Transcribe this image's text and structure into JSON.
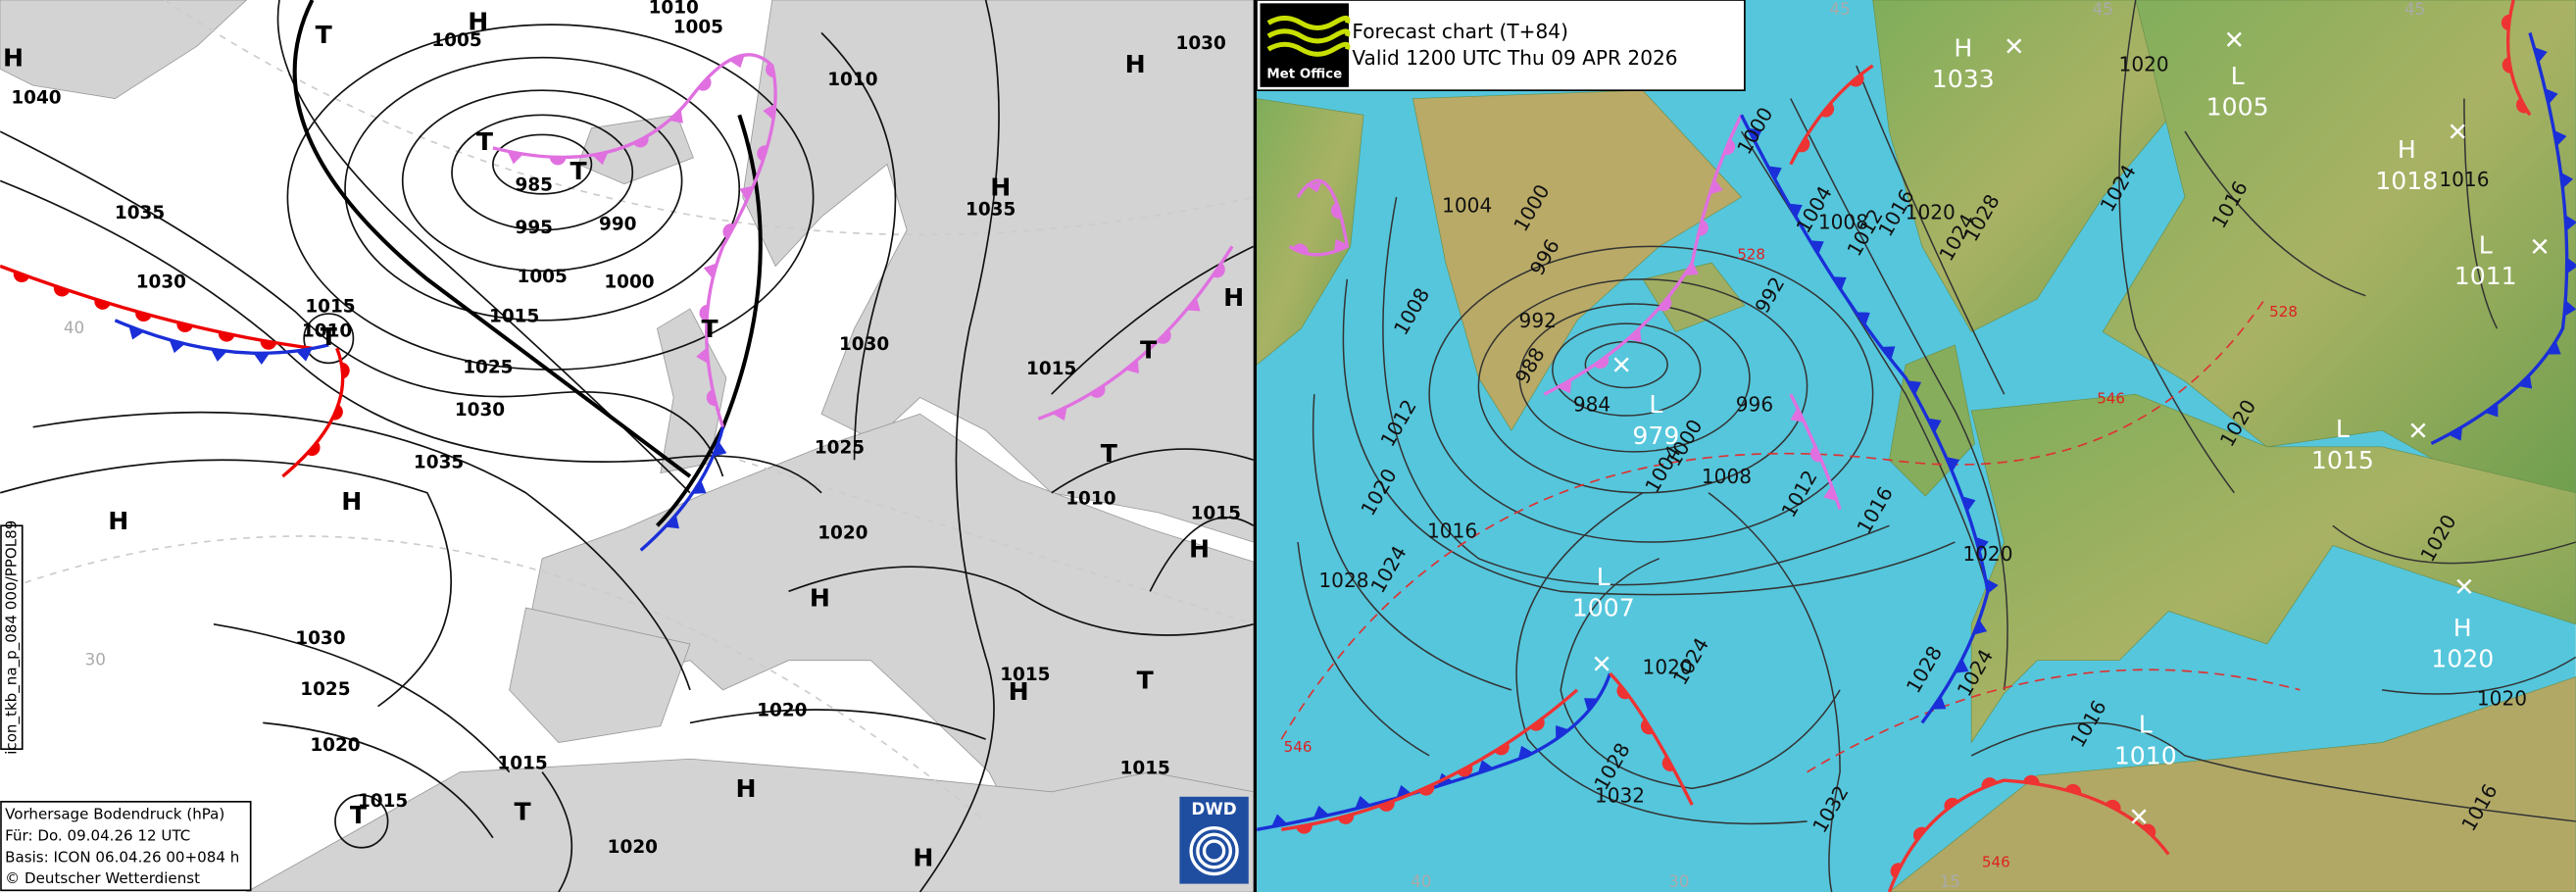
{
  "left": {
    "centers": [
      "H",
      "T",
      "H",
      "H",
      "T",
      "T",
      "H",
      "T",
      "H",
      "H",
      "T",
      "T",
      "H",
      "T",
      "H",
      "H",
      "T",
      "T",
      "H",
      "T",
      "H",
      "H"
    ],
    "isobar_labels": [
      1040,
      1035,
      1030,
      1005,
      1010,
      1005,
      1010,
      1030,
      985,
      995,
      990,
      1000,
      1005,
      1035,
      1015,
      1010,
      1015,
      1025,
      1030,
      1035,
      1030,
      1015,
      1025,
      1010,
      1015,
      1020,
      1030,
      1025,
      1020,
      1015,
      1015,
      1020,
      1015,
      1015,
      1020
    ],
    "grid_labels": [
      "40",
      "30"
    ],
    "caption": [
      "Vorhersage Bodendruck (hPa)",
      "Für:  Do. 09.04.26  12 UTC",
      "Basis: ICON  06.04.26 00+084 h",
      "© Deutscher Wetterdienst"
    ],
    "side_code": "icon_tkb_na_p_084 000/PPOL89",
    "logo": "DWD"
  },
  "right": {
    "header": {
      "title": "Forecast chart (T+84)",
      "valid": "Valid 1200 UTC Thu 09 APR 2026",
      "logo": "Met Office"
    },
    "centers": [
      [
        "H",
        "1033"
      ],
      [
        "L",
        "1005"
      ],
      [
        "H",
        "1018"
      ],
      [
        "L",
        "1011"
      ],
      [
        "L",
        "1015"
      ],
      [
        "H",
        "1020"
      ],
      [
        "L",
        "1010"
      ],
      [
        "L",
        "979"
      ],
      [
        "L",
        "1007"
      ]
    ],
    "isobar_labels": [
      984,
      1000,
      1004,
      1008,
      1012,
      1016,
      996,
      992,
      988,
      992,
      996,
      1000,
      1004,
      1008,
      1012,
      1016,
      1020,
      1024,
      1028,
      1000,
      1004,
      1008,
      1012,
      1016,
      1020,
      1024,
      1028,
      1020,
      1024,
      1016,
      1016,
      1020,
      1020,
      1020,
      1016,
      1016,
      1020,
      1024,
      1028,
      1020,
      1024,
      1028,
      1032,
      1032
    ],
    "thickness_labels": [
      528,
      546,
      528,
      546,
      546
    ],
    "grid_labels": [
      "45",
      "45",
      "45",
      "40",
      "30",
      "15"
    ]
  }
}
